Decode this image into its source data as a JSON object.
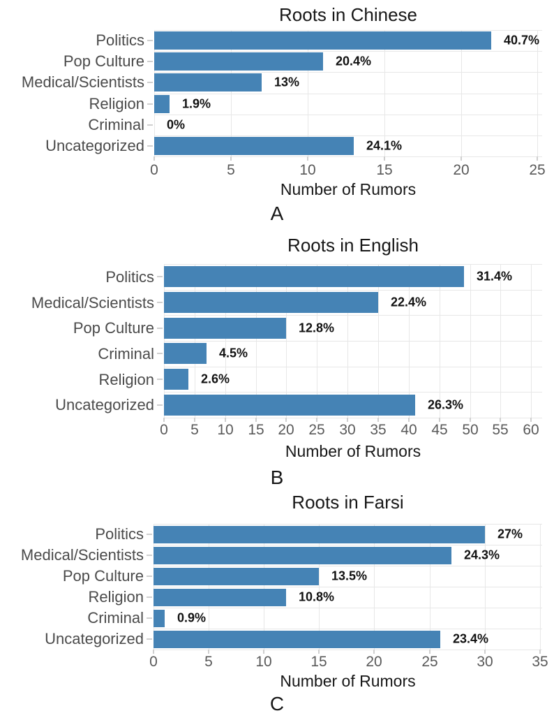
{
  "figure": {
    "x_axis_title": "Number of Rumors",
    "bar_color": "#4583b5",
    "grid_color": "#e7e7e7",
    "category_label_color": "#4a4a4a",
    "tick_label_color": "#595959",
    "pct_label_color": "#111111"
  },
  "chart_data": [
    {
      "type": "bar",
      "orientation": "horizontal",
      "title": "Roots in Chinese",
      "panel_letter": "A",
      "xlabel": "Number of Rumors",
      "ylabel": "",
      "categories": [
        "Politics",
        "Pop Culture",
        "Medical/Scientists",
        "Religion",
        "Criminal",
        "Uncategorized"
      ],
      "values": [
        22,
        11,
        7,
        1,
        0,
        13
      ],
      "pct_labels": [
        "40.7%",
        "20.4%",
        "13%",
        "1.9%",
        "0%",
        "24.1%"
      ],
      "x_ticks": [
        0,
        5,
        10,
        15,
        20,
        25
      ],
      "xlim": [
        0,
        25
      ],
      "grid": "on",
      "legend": "none"
    },
    {
      "type": "bar",
      "orientation": "horizontal",
      "title": "Roots in English",
      "panel_letter": "B",
      "xlabel": "Number of Rumors",
      "ylabel": "",
      "categories": [
        "Politics",
        "Medical/Scientists",
        "Pop Culture",
        "Criminal",
        "Religion",
        "Uncategorized"
      ],
      "values": [
        49,
        35,
        20,
        7,
        4,
        41
      ],
      "pct_labels": [
        "31.4%",
        "22.4%",
        "12.8%",
        "4.5%",
        "2.6%",
        "26.3%"
      ],
      "x_ticks": [
        0,
        5,
        10,
        15,
        20,
        25,
        30,
        35,
        40,
        45,
        50,
        55,
        60
      ],
      "xlim": [
        0,
        60
      ],
      "grid": "on",
      "legend": "none"
    },
    {
      "type": "bar",
      "orientation": "horizontal",
      "title": "Roots in Farsi",
      "panel_letter": "C",
      "xlabel": "Number of Rumors",
      "ylabel": "",
      "categories": [
        "Politics",
        "Medical/Scientists",
        "Pop Culture",
        "Religion",
        "Criminal",
        "Uncategorized"
      ],
      "values": [
        30,
        27,
        15,
        12,
        1,
        26
      ],
      "pct_labels": [
        "27%",
        "24.3%",
        "13.5%",
        "10.8%",
        "0.9%",
        "23.4%"
      ],
      "x_ticks": [
        0,
        5,
        10,
        15,
        20,
        25,
        30,
        35
      ],
      "xlim": [
        0,
        35
      ],
      "grid": "on",
      "legend": "none"
    }
  ]
}
